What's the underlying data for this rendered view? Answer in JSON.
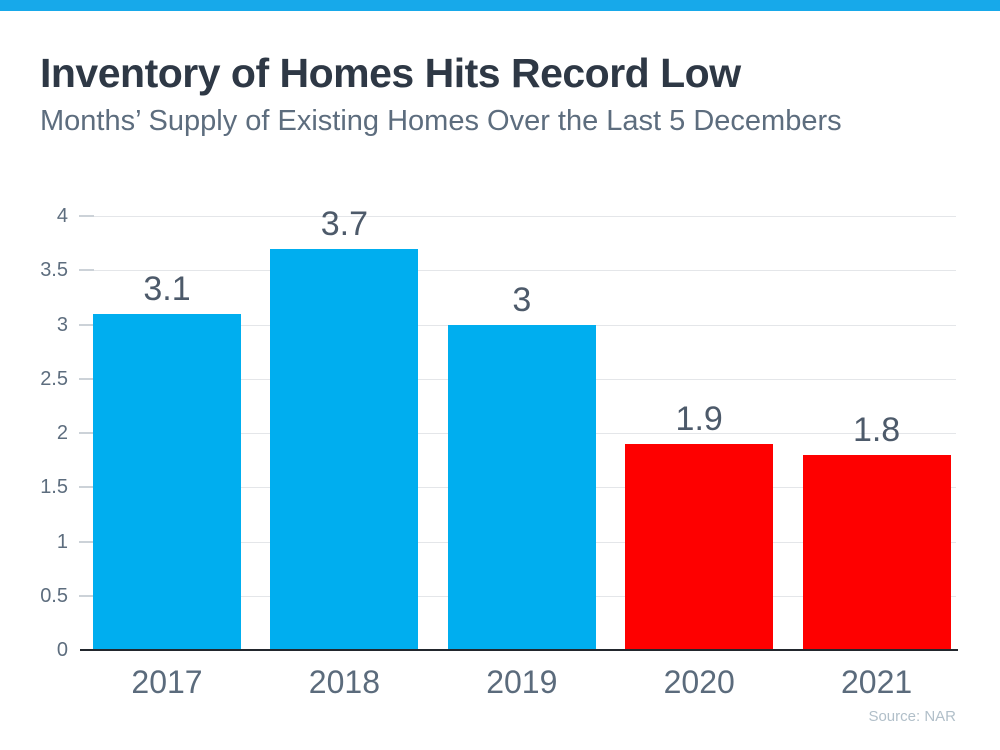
{
  "header": {
    "title": "Inventory of Homes Hits Record Low",
    "subtitle": "Months’ Supply of Existing Homes Over the Last 5 Decembers"
  },
  "footer": {
    "source": "Source: NAR"
  },
  "colors": {
    "accent_bar": "#17a9ea",
    "bar_blue": "#00aeef",
    "bar_red": "#fe0000",
    "title_text": "#2e3845",
    "subtitle_text": "#5d6d7e",
    "value_label_text": "#4d5a6a",
    "axis_label_text": "#5b6b7c",
    "gridline": "#e4e6e9",
    "axis_line": "#22272d",
    "source_text": "#b1bfc9"
  },
  "chart_data": {
    "type": "bar",
    "title": "Inventory of Homes Hits Record Low",
    "subtitle": "Months’ Supply of Existing Homes Over the Last 5 Decembers",
    "categories": [
      "2017",
      "2018",
      "2019",
      "2020",
      "2021"
    ],
    "values": [
      3.1,
      3.7,
      3,
      1.9,
      1.8
    ],
    "value_labels": [
      "3.1",
      "3.7",
      "3",
      "1.9",
      "1.8"
    ],
    "bar_colors": [
      "#00aeef",
      "#00aeef",
      "#00aeef",
      "#fe0000",
      "#fe0000"
    ],
    "xlabel": "",
    "ylabel": "",
    "ylim": [
      0,
      4
    ],
    "yticks": [
      0,
      0.5,
      1,
      1.5,
      2,
      2.5,
      3,
      3.5,
      4
    ],
    "grid": true,
    "legend": false,
    "source": "Source: NAR"
  }
}
